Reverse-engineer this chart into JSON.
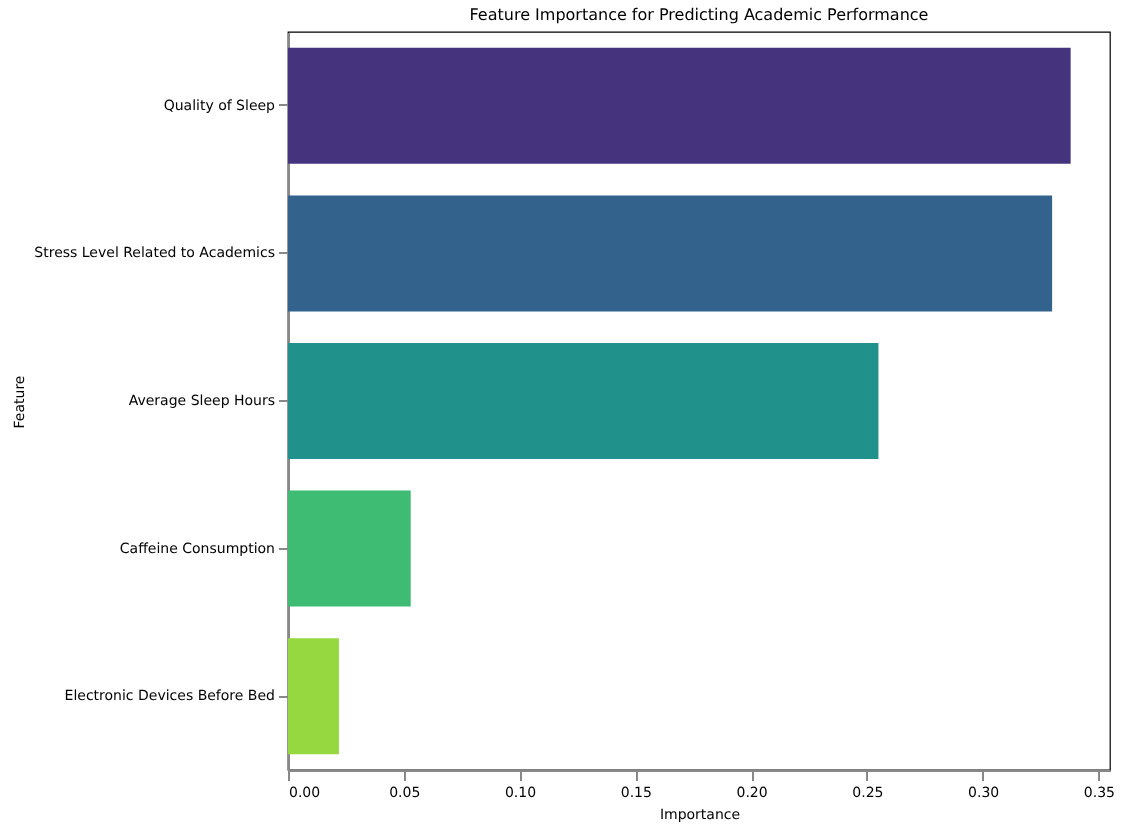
{
  "chart_data": {
    "type": "bar",
    "orientation": "horizontal",
    "title": "Feature Importance for Predicting Academic Performance",
    "xlabel": "Importance",
    "ylabel": "Feature",
    "categories": [
      "Quality of Sleep",
      "Stress Level Related to Academics",
      "Average Sleep Hours",
      "Caffeine Consumption",
      "Electronic Devices Before Bed"
    ],
    "values": [
      0.338,
      0.33,
      0.255,
      0.053,
      0.022
    ],
    "colors": [
      "#46337e",
      "#33638d",
      "#21918c",
      "#3fbc73",
      "#95d840"
    ],
    "xlim": [
      0,
      0.355
    ],
    "xticks": [
      {
        "value": 0,
        "label": "0.00"
      },
      {
        "value": 0.05,
        "label": "0.05"
      },
      {
        "value": 0.1,
        "label": "0.10"
      },
      {
        "value": 0.15,
        "label": "0.15"
      },
      {
        "value": 0.2,
        "label": "0.20"
      },
      {
        "value": 0.25,
        "label": "0.25"
      },
      {
        "value": 0.3,
        "label": "0.30"
      },
      {
        "value": 0.35,
        "label": "0.35"
      }
    ],
    "grid": false
  }
}
